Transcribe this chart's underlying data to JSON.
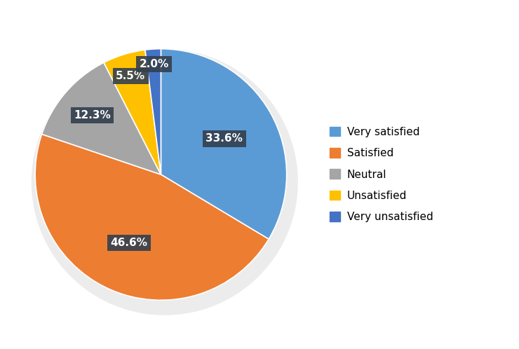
{
  "labels": [
    "Very satisfied",
    "Satisfied",
    "Neutral",
    "Unsatisfied",
    "Very unsatisfied"
  ],
  "values": [
    33.6,
    46.6,
    12.3,
    5.5,
    2.0
  ],
  "colors": [
    "#5B9BD5",
    "#ED7D31",
    "#A5A5A5",
    "#FFC000",
    "#4472C4"
  ],
  "legend_colors": [
    "#5B9BD5",
    "#ED7D31",
    "#A5A5A5",
    "#FFC000",
    "#4472C4"
  ],
  "pct_labels": [
    "33.6%",
    "46.6%",
    "12.3%",
    "5.5%",
    "2.0%"
  ],
  "label_box_color": "#333F4F",
  "label_text_color": "#FFFFFF",
  "background_color": "#FFFFFF",
  "figsize": [
    7.4,
    4.98
  ],
  "dpi": 100,
  "startangle": 90,
  "label_radii": [
    0.58,
    0.6,
    0.72,
    0.82,
    0.88
  ],
  "label_fontsize": 11
}
